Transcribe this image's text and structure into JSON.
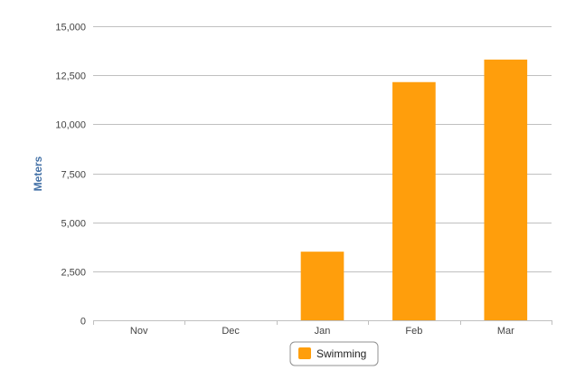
{
  "chart_data": {
    "type": "bar",
    "categories": [
      "Nov",
      "Dec",
      "Jan",
      "Feb",
      "Mar"
    ],
    "series": [
      {
        "name": "Swimming",
        "values": [
          0,
          0,
          3500,
          12150,
          13300
        ]
      }
    ],
    "ylabel": "Meters",
    "ylim": [
      0,
      15000
    ],
    "yticks": [
      "0",
      "2,500",
      "5,000",
      "7,500",
      "10,000",
      "12,500",
      "15,000"
    ],
    "ytick_values": [
      0,
      2500,
      5000,
      7500,
      10000,
      12500,
      15000
    ],
    "grid": true,
    "legend_position": "bottom-center",
    "colors": {
      "bar": "#ff9e0c",
      "grid": "#c0c0c0",
      "axis_title": "#4572a7"
    }
  }
}
